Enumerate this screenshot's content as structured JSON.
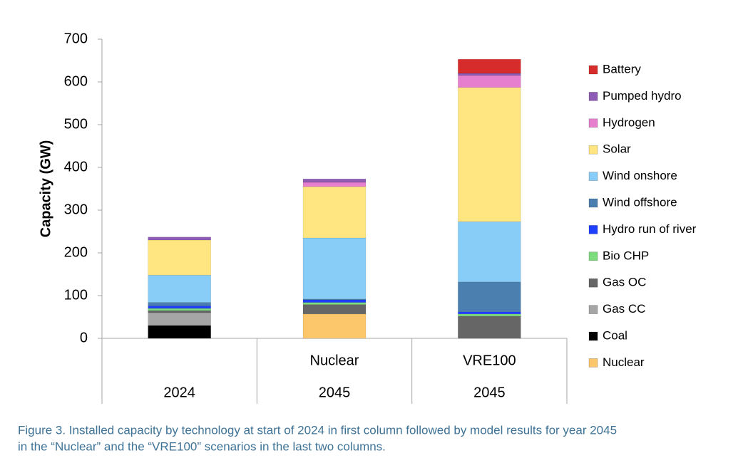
{
  "chart_data": {
    "type": "stacked-bar",
    "y_label": "Capacity (GW)",
    "categories": [
      null,
      "Nuclear",
      "VRE100"
    ],
    "groups": [
      "2024",
      "2045",
      "2045"
    ],
    "ylim": [
      0,
      700
    ],
    "yticks": [
      0,
      100,
      200,
      300,
      400,
      500,
      600,
      700
    ],
    "series": [
      {
        "name": "Nuclear",
        "color": "#fcc66a",
        "values": [
          0,
          57,
          0
        ]
      },
      {
        "name": "Coal",
        "color": "#000000",
        "values": [
          30,
          0,
          0
        ]
      },
      {
        "name": "Gas CC",
        "color": "#a6a6a6",
        "values": [
          30,
          0,
          0
        ]
      },
      {
        "name": "Gas OC",
        "color": "#666666",
        "values": [
          5,
          22,
          52
        ]
      },
      {
        "name": "Bio CHP",
        "color": "#7ddc7d",
        "values": [
          5,
          5,
          5
        ]
      },
      {
        "name": "Hydro run of river",
        "color": "#1f3fff",
        "values": [
          6,
          6,
          5
        ]
      },
      {
        "name": "Wind offshore",
        "color": "#4a7fb0",
        "values": [
          8,
          2,
          70
        ]
      },
      {
        "name": "Wind onshore",
        "color": "#87cdf7",
        "values": [
          64,
          143,
          141
        ]
      },
      {
        "name": "Solar",
        "color": "#ffe680",
        "values": [
          82,
          120,
          314
        ]
      },
      {
        "name": "Hydrogen",
        "color": "#e77fcf",
        "values": [
          0,
          10,
          28
        ]
      },
      {
        "name": "Pumped hydro",
        "color": "#8e5cb5",
        "values": [
          7,
          8,
          5
        ]
      },
      {
        "name": "Battery",
        "color": "#d62c2c",
        "values": [
          0,
          0,
          33
        ]
      }
    ]
  },
  "caption": [
    "Figure 3. Installed capacity by technology at start of 2024 in first column followed by model results for year 2045",
    "in the “Nuclear” and the “VRE100” scenarios in the last two columns."
  ]
}
